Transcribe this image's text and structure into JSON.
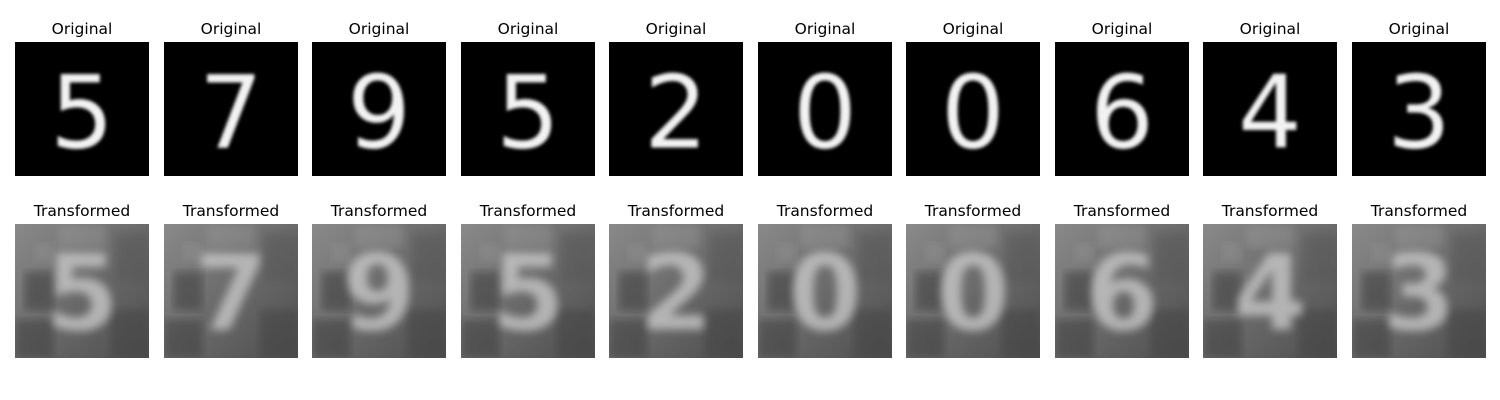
{
  "figure": {
    "original_title": "Original",
    "transformed_title": "Transformed",
    "digits": [
      "5",
      "7",
      "9",
      "5",
      "2",
      "0",
      "0",
      "6",
      "4",
      "3"
    ],
    "colors": {
      "background": "#ffffff",
      "original_bg": "#000000",
      "original_stroke": "#f2f2f2",
      "transformed_bg": "#6f6f6f",
      "transformed_stroke": "#c8c8c8",
      "title_text": "#000000"
    }
  }
}
